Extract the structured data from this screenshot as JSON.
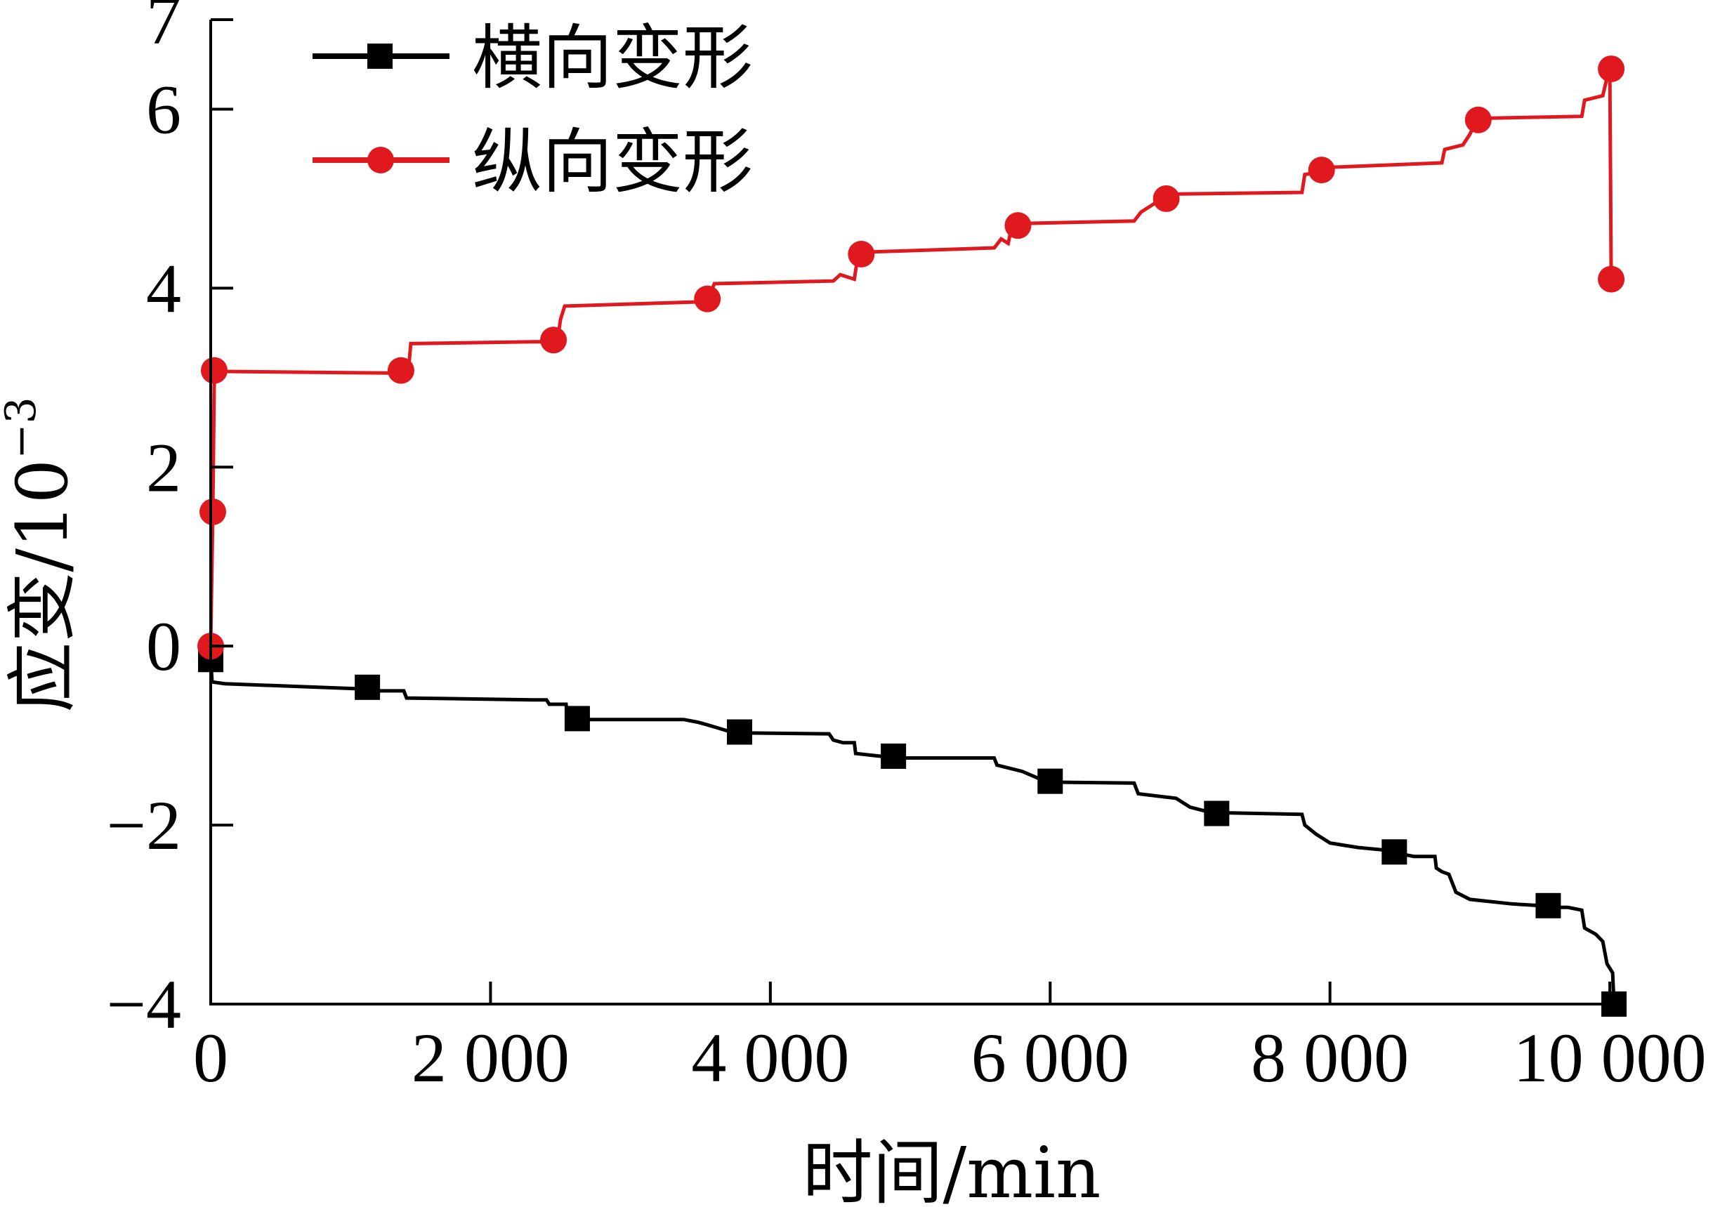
{
  "chart_data": {
    "type": "line",
    "xlabel": "时间/min",
    "ylabel_base": "应变/10",
    "ylabel_exp": "−3",
    "xlim": [
      0,
      10100
    ],
    "ylim": [
      -4,
      7
    ],
    "x_ticks": [
      0,
      2000,
      4000,
      6000,
      8000,
      10000
    ],
    "x_tick_labels": [
      "0",
      "2 000",
      "4 000",
      "6 000",
      "8 000",
      "10 000"
    ],
    "y_ticks": [
      -4,
      -2,
      0,
      2,
      4,
      6,
      7
    ],
    "y_tick_labels": [
      "−4",
      "−2",
      "0",
      "2",
      "4",
      "6",
      "7"
    ],
    "legend": {
      "position": "top-left"
    },
    "series": [
      {
        "name": "横向变形",
        "color": "#000000",
        "marker": "square",
        "line": [
          [
            0,
            -0.15
          ],
          [
            10,
            -0.4
          ],
          [
            100,
            -0.42
          ],
          [
            600,
            -0.45
          ],
          [
            1110,
            -0.48
          ],
          [
            1200,
            -0.5
          ],
          [
            1380,
            -0.5
          ],
          [
            1400,
            -0.58
          ],
          [
            2300,
            -0.6
          ],
          [
            2400,
            -0.6
          ],
          [
            2420,
            -0.65
          ],
          [
            2540,
            -0.65
          ],
          [
            2550,
            -0.8
          ],
          [
            2630,
            -0.82
          ],
          [
            3380,
            -0.82
          ],
          [
            3480,
            -0.85
          ],
          [
            3550,
            -0.88
          ],
          [
            3700,
            -0.95
          ],
          [
            3780,
            -0.97
          ],
          [
            4420,
            -0.98
          ],
          [
            4450,
            -1.05
          ],
          [
            4520,
            -1.08
          ],
          [
            4600,
            -1.08
          ],
          [
            4610,
            -1.2
          ],
          [
            4900,
            -1.25
          ],
          [
            5600,
            -1.25
          ],
          [
            5620,
            -1.33
          ],
          [
            5800,
            -1.4
          ],
          [
            5950,
            -1.5
          ],
          [
            6000,
            -1.52
          ],
          [
            6600,
            -1.53
          ],
          [
            6630,
            -1.65
          ],
          [
            6900,
            -1.7
          ],
          [
            7000,
            -1.8
          ],
          [
            7150,
            -1.86
          ],
          [
            7800,
            -1.88
          ],
          [
            7820,
            -2.0
          ],
          [
            7900,
            -2.1
          ],
          [
            8000,
            -2.2
          ],
          [
            8200,
            -2.25
          ],
          [
            8400,
            -2.28
          ],
          [
            8500,
            -2.32
          ],
          [
            8600,
            -2.35
          ],
          [
            8750,
            -2.35
          ],
          [
            8760,
            -2.48
          ],
          [
            8800,
            -2.52
          ],
          [
            8850,
            -2.55
          ],
          [
            8900,
            -2.75
          ],
          [
            9000,
            -2.83
          ],
          [
            9300,
            -2.88
          ],
          [
            9500,
            -2.9
          ],
          [
            9600,
            -2.92
          ],
          [
            9700,
            -2.92
          ],
          [
            9800,
            -2.95
          ],
          [
            9820,
            -3.15
          ],
          [
            9900,
            -3.22
          ],
          [
            9950,
            -3.3
          ],
          [
            9980,
            -3.55
          ],
          [
            10020,
            -3.65
          ],
          [
            10030,
            -4.0
          ]
        ],
        "markers": [
          [
            0,
            -0.15
          ],
          [
            1120,
            -0.46
          ],
          [
            2620,
            -0.81
          ],
          [
            3780,
            -0.96
          ],
          [
            4880,
            -1.23
          ],
          [
            6000,
            -1.51
          ],
          [
            7190,
            -1.87
          ],
          [
            8460,
            -2.3
          ],
          [
            9560,
            -2.9
          ],
          [
            10030,
            -4.0
          ]
        ]
      },
      {
        "name": "纵向变形",
        "color": "#e0191e",
        "marker": "circle",
        "line": [
          [
            0,
            0
          ],
          [
            15,
            1.5
          ],
          [
            25,
            2.9
          ],
          [
            30,
            3.05
          ],
          [
            35,
            3.07
          ],
          [
            1350,
            3.05
          ],
          [
            1400,
            3.05
          ],
          [
            1420,
            3.2
          ],
          [
            1430,
            3.38
          ],
          [
            2300,
            3.4
          ],
          [
            2400,
            3.4
          ],
          [
            2420,
            3.5
          ],
          [
            2440,
            3.42
          ],
          [
            2480,
            3.42
          ],
          [
            2500,
            3.65
          ],
          [
            2530,
            3.8
          ],
          [
            3550,
            3.85
          ],
          [
            3600,
            4.05
          ],
          [
            4450,
            4.08
          ],
          [
            4500,
            4.15
          ],
          [
            4600,
            4.1
          ],
          [
            4630,
            4.4
          ],
          [
            5600,
            4.45
          ],
          [
            5650,
            4.55
          ],
          [
            5700,
            4.5
          ],
          [
            5730,
            4.72
          ],
          [
            6600,
            4.75
          ],
          [
            6650,
            4.85
          ],
          [
            6800,
            5.0
          ],
          [
            6830,
            5.05
          ],
          [
            7800,
            5.07
          ],
          [
            7820,
            5.27
          ],
          [
            7950,
            5.3
          ],
          [
            8000,
            5.35
          ],
          [
            8800,
            5.4
          ],
          [
            8820,
            5.55
          ],
          [
            8950,
            5.6
          ],
          [
            9000,
            5.72
          ],
          [
            9050,
            5.88
          ],
          [
            9150,
            5.9
          ],
          [
            9800,
            5.92
          ],
          [
            9820,
            6.1
          ],
          [
            9950,
            6.15
          ],
          [
            9980,
            6.35
          ],
          [
            10000,
            6.45
          ],
          [
            10010,
            4.1
          ]
        ],
        "markers": [
          [
            0,
            0
          ],
          [
            15,
            1.5
          ],
          [
            25,
            3.08
          ],
          [
            1360,
            3.08
          ],
          [
            2450,
            3.42
          ],
          [
            3550,
            3.88
          ],
          [
            4650,
            4.38
          ],
          [
            5770,
            4.7
          ],
          [
            6830,
            5.0
          ],
          [
            7940,
            5.32
          ],
          [
            9060,
            5.88
          ],
          [
            10010,
            6.45
          ],
          [
            10010,
            4.1
          ]
        ]
      }
    ]
  }
}
